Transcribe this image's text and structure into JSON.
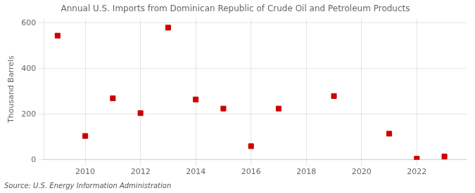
{
  "chart_data": {
    "type": "scatter",
    "title": "Annual U.S. Imports from Dominican Republic of Crude Oil and Petroleum Products",
    "ylabel": "Thousand Barrels",
    "annotation": "Source: U.S. Energy Information Administration",
    "x": [
      2009,
      2010,
      2011,
      2012,
      2013,
      2014,
      2015,
      2016,
      2017,
      2019,
      2021,
      2022,
      2023
    ],
    "values": [
      545,
      105,
      270,
      205,
      580,
      265,
      225,
      60,
      225,
      280,
      115,
      5,
      15
    ],
    "color": "#cc0000",
    "marker": "square",
    "xlim": [
      2008.5,
      2023.8
    ],
    "ylim": [
      0,
      620
    ],
    "xticks": [
      2010,
      2012,
      2014,
      2016,
      2018,
      2020,
      2022
    ],
    "yticks": [
      0,
      200,
      400,
      600
    ],
    "grid": true
  }
}
